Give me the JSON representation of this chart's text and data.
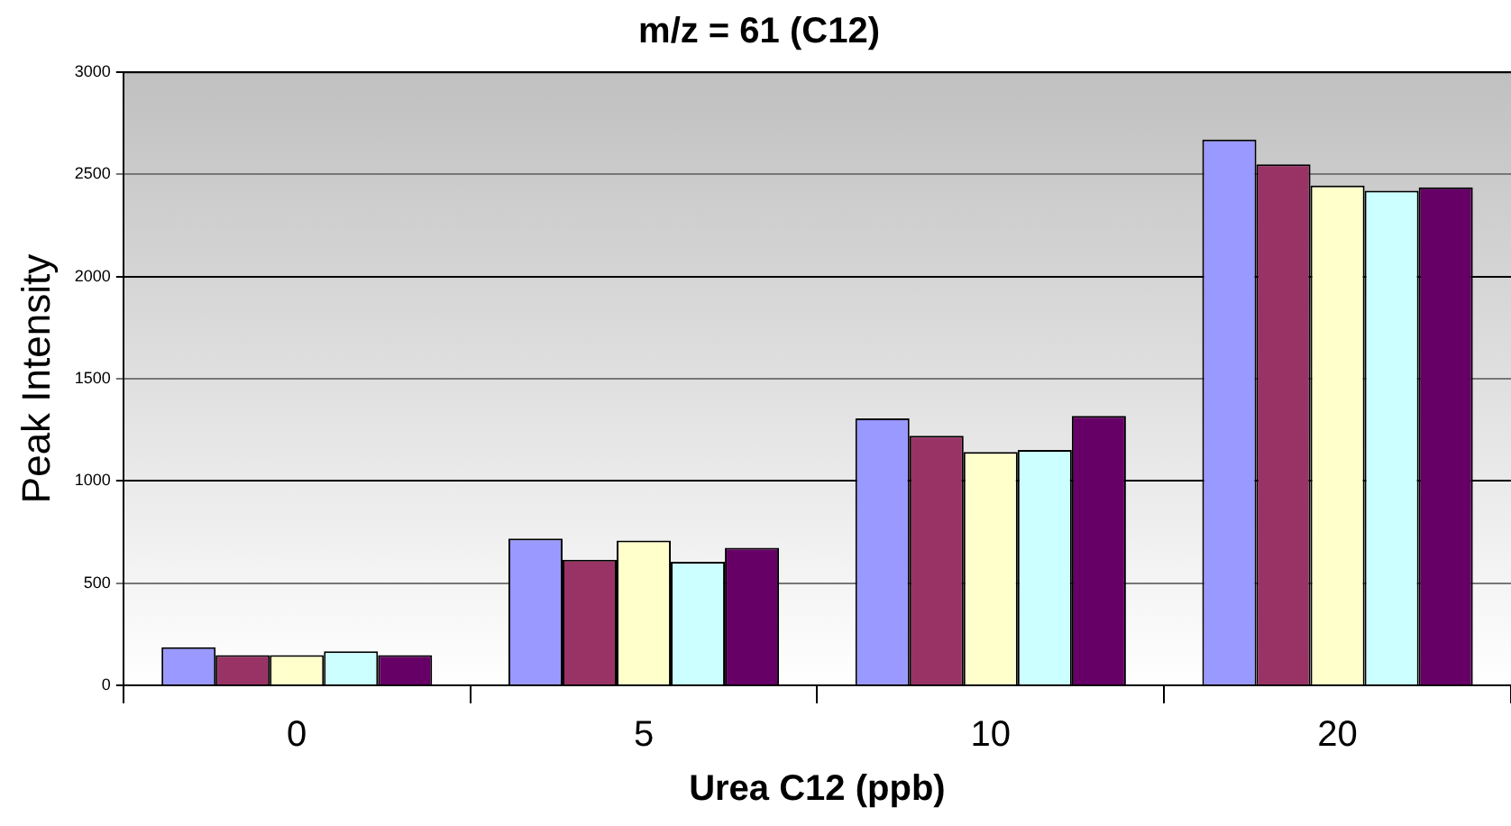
{
  "chart_data": {
    "type": "bar",
    "title": "m/z = 61 (C12)",
    "xlabel": "Urea C12 (ppb)",
    "ylabel": "Peak Intensity",
    "categories": [
      "0",
      "5",
      "10",
      "20"
    ],
    "series": [
      {
        "color": "#9999ff",
        "values": [
          186,
          718,
          1306,
          2670
        ]
      },
      {
        "color": "#993366",
        "values": [
          148,
          614,
          1221,
          2549
        ]
      },
      {
        "color": "#ffffcc",
        "values": [
          148,
          708,
          1142,
          2445
        ]
      },
      {
        "color": "#ccffff",
        "values": [
          167,
          604,
          1152,
          2420
        ]
      },
      {
        "color": "#660066",
        "values": [
          148,
          673,
          1318,
          2436
        ]
      }
    ],
    "ylim": [
      0,
      3000
    ],
    "yticks": [
      0,
      500,
      1000,
      1500,
      2000,
      2500,
      3000
    ],
    "grid": "y",
    "legend": false
  }
}
